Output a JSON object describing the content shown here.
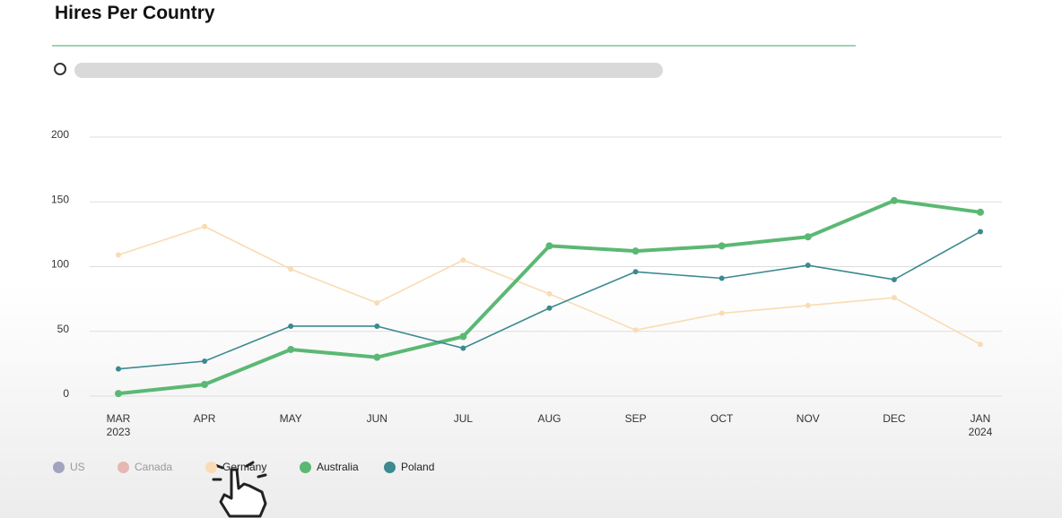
{
  "chart_data": {
    "type": "line",
    "title": "Hires Per Country",
    "categories": [
      "MAR\n2023",
      "APR",
      "MAY",
      "JUN",
      "JUL",
      "AUG",
      "SEP",
      "OCT",
      "NOV",
      "DEC",
      "JAN\n2024"
    ],
    "ylim": [
      0,
      200
    ],
    "yticks": [
      0,
      50,
      100,
      150,
      200
    ],
    "grid": true,
    "series": [
      {
        "name": "US",
        "color": "#8d90b3",
        "visible": false,
        "values": [
          null,
          null,
          null,
          null,
          null,
          null,
          null,
          null,
          null,
          null,
          null
        ]
      },
      {
        "name": "Canada",
        "color": "#e3a9a4",
        "visible": false,
        "values": [
          null,
          null,
          null,
          null,
          null,
          null,
          null,
          null,
          null,
          null,
          null
        ]
      },
      {
        "name": "Germany",
        "color": "#f9dcb3",
        "visible": true,
        "values": [
          109,
          131,
          98,
          72,
          105,
          79,
          51,
          64,
          70,
          76,
          40
        ]
      },
      {
        "name": "Australia",
        "color": "#5bb874",
        "visible": true,
        "values": [
          2,
          9,
          36,
          30,
          46,
          116,
          112,
          116,
          123,
          151,
          142
        ]
      },
      {
        "name": "Poland",
        "color": "#3b8a8f",
        "visible": true,
        "values": [
          21,
          27,
          54,
          54,
          37,
          68,
          96,
          91,
          101,
          90,
          127
        ]
      }
    ]
  }
}
